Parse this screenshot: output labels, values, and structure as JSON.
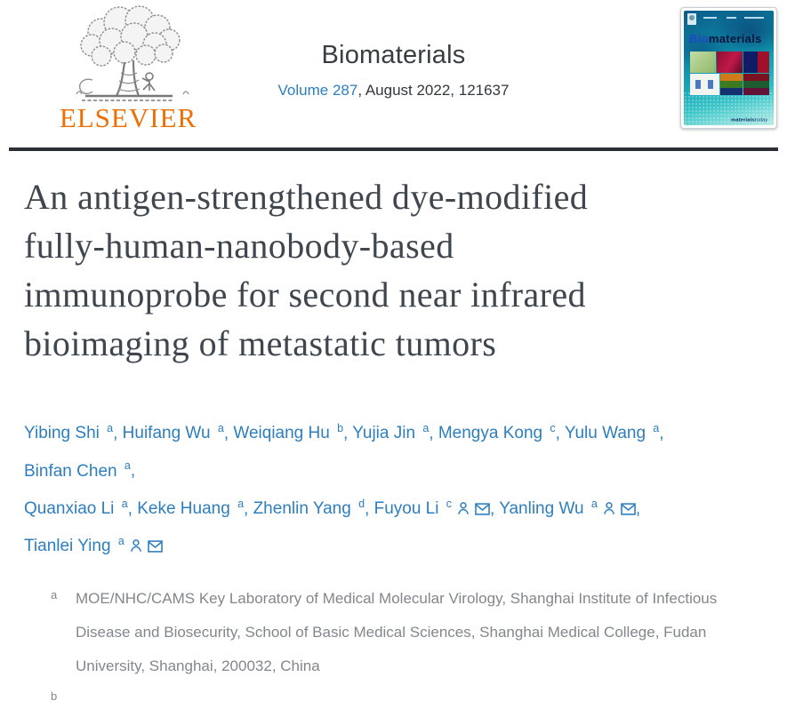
{
  "header": {
    "publisher": {
      "name": "ELSEVIER"
    },
    "journal": {
      "title": "Biomaterials",
      "volume_link": "Volume 287",
      "issue_suffix": ", August 2022, 121637"
    },
    "cover": {
      "title_bio": "Bio",
      "title_materials": "materials",
      "footer_brand_bold": "materials",
      "footer_brand_light": "today"
    }
  },
  "article": {
    "title_lines": [
      "An antigen-strengthened dye-modified",
      "fully-human-nanobody-based",
      "immunoprobe for second near infrared",
      "bioimaging of metastatic tumors"
    ],
    "title_full": "An antigen-strengthened dye-modified fully-human-nanobody-based immunoprobe for second near infrared bioimaging of metastatic tumors",
    "authors": [
      {
        "name": "Yibing Shi",
        "sup": "a"
      },
      {
        "name": "Huifang Wu",
        "sup": "a"
      },
      {
        "name": "Weiqiang Hu",
        "sup": "b"
      },
      {
        "name": "Yujia Jin",
        "sup": "a"
      },
      {
        "name": "Mengya Kong",
        "sup": "c"
      },
      {
        "name": "Yulu Wang",
        "sup": "a"
      },
      {
        "name": "Binfan Chen",
        "sup": "a",
        "break_after": true
      },
      {
        "name": "Quanxiao Li",
        "sup": "a"
      },
      {
        "name": "Keke Huang",
        "sup": "a"
      },
      {
        "name": "Zhenlin Yang",
        "sup": "d"
      },
      {
        "name": "Fuyou Li",
        "sup": "c",
        "person_icon": true,
        "email_icon": true
      },
      {
        "name": "Yanling Wu",
        "sup": "a",
        "person_icon": true,
        "email_icon": true
      },
      {
        "name": "Tianlei Ying",
        "sup": "a",
        "person_icon": true,
        "email_icon": true
      }
    ],
    "affiliations": [
      {
        "sup": "a",
        "text": "MOE/NHC/CAMS Key Laboratory of Medical Molecular Virology, Shanghai Institute of Infectious Disease and Biosecurity, School of Basic Medical Sciences, Shanghai Medical College, Fudan University, Shanghai, 200032, China"
      },
      {
        "sup": "b",
        "text": ""
      }
    ]
  },
  "colors": {
    "link_blue": "#2d7ebe",
    "elsevier_orange": "#ee7005",
    "divider_dark": "#2c2f33",
    "title_gray": "#3f464d",
    "affiliation_gray": "#83868b",
    "cover_teal": "#0f8ea8"
  }
}
